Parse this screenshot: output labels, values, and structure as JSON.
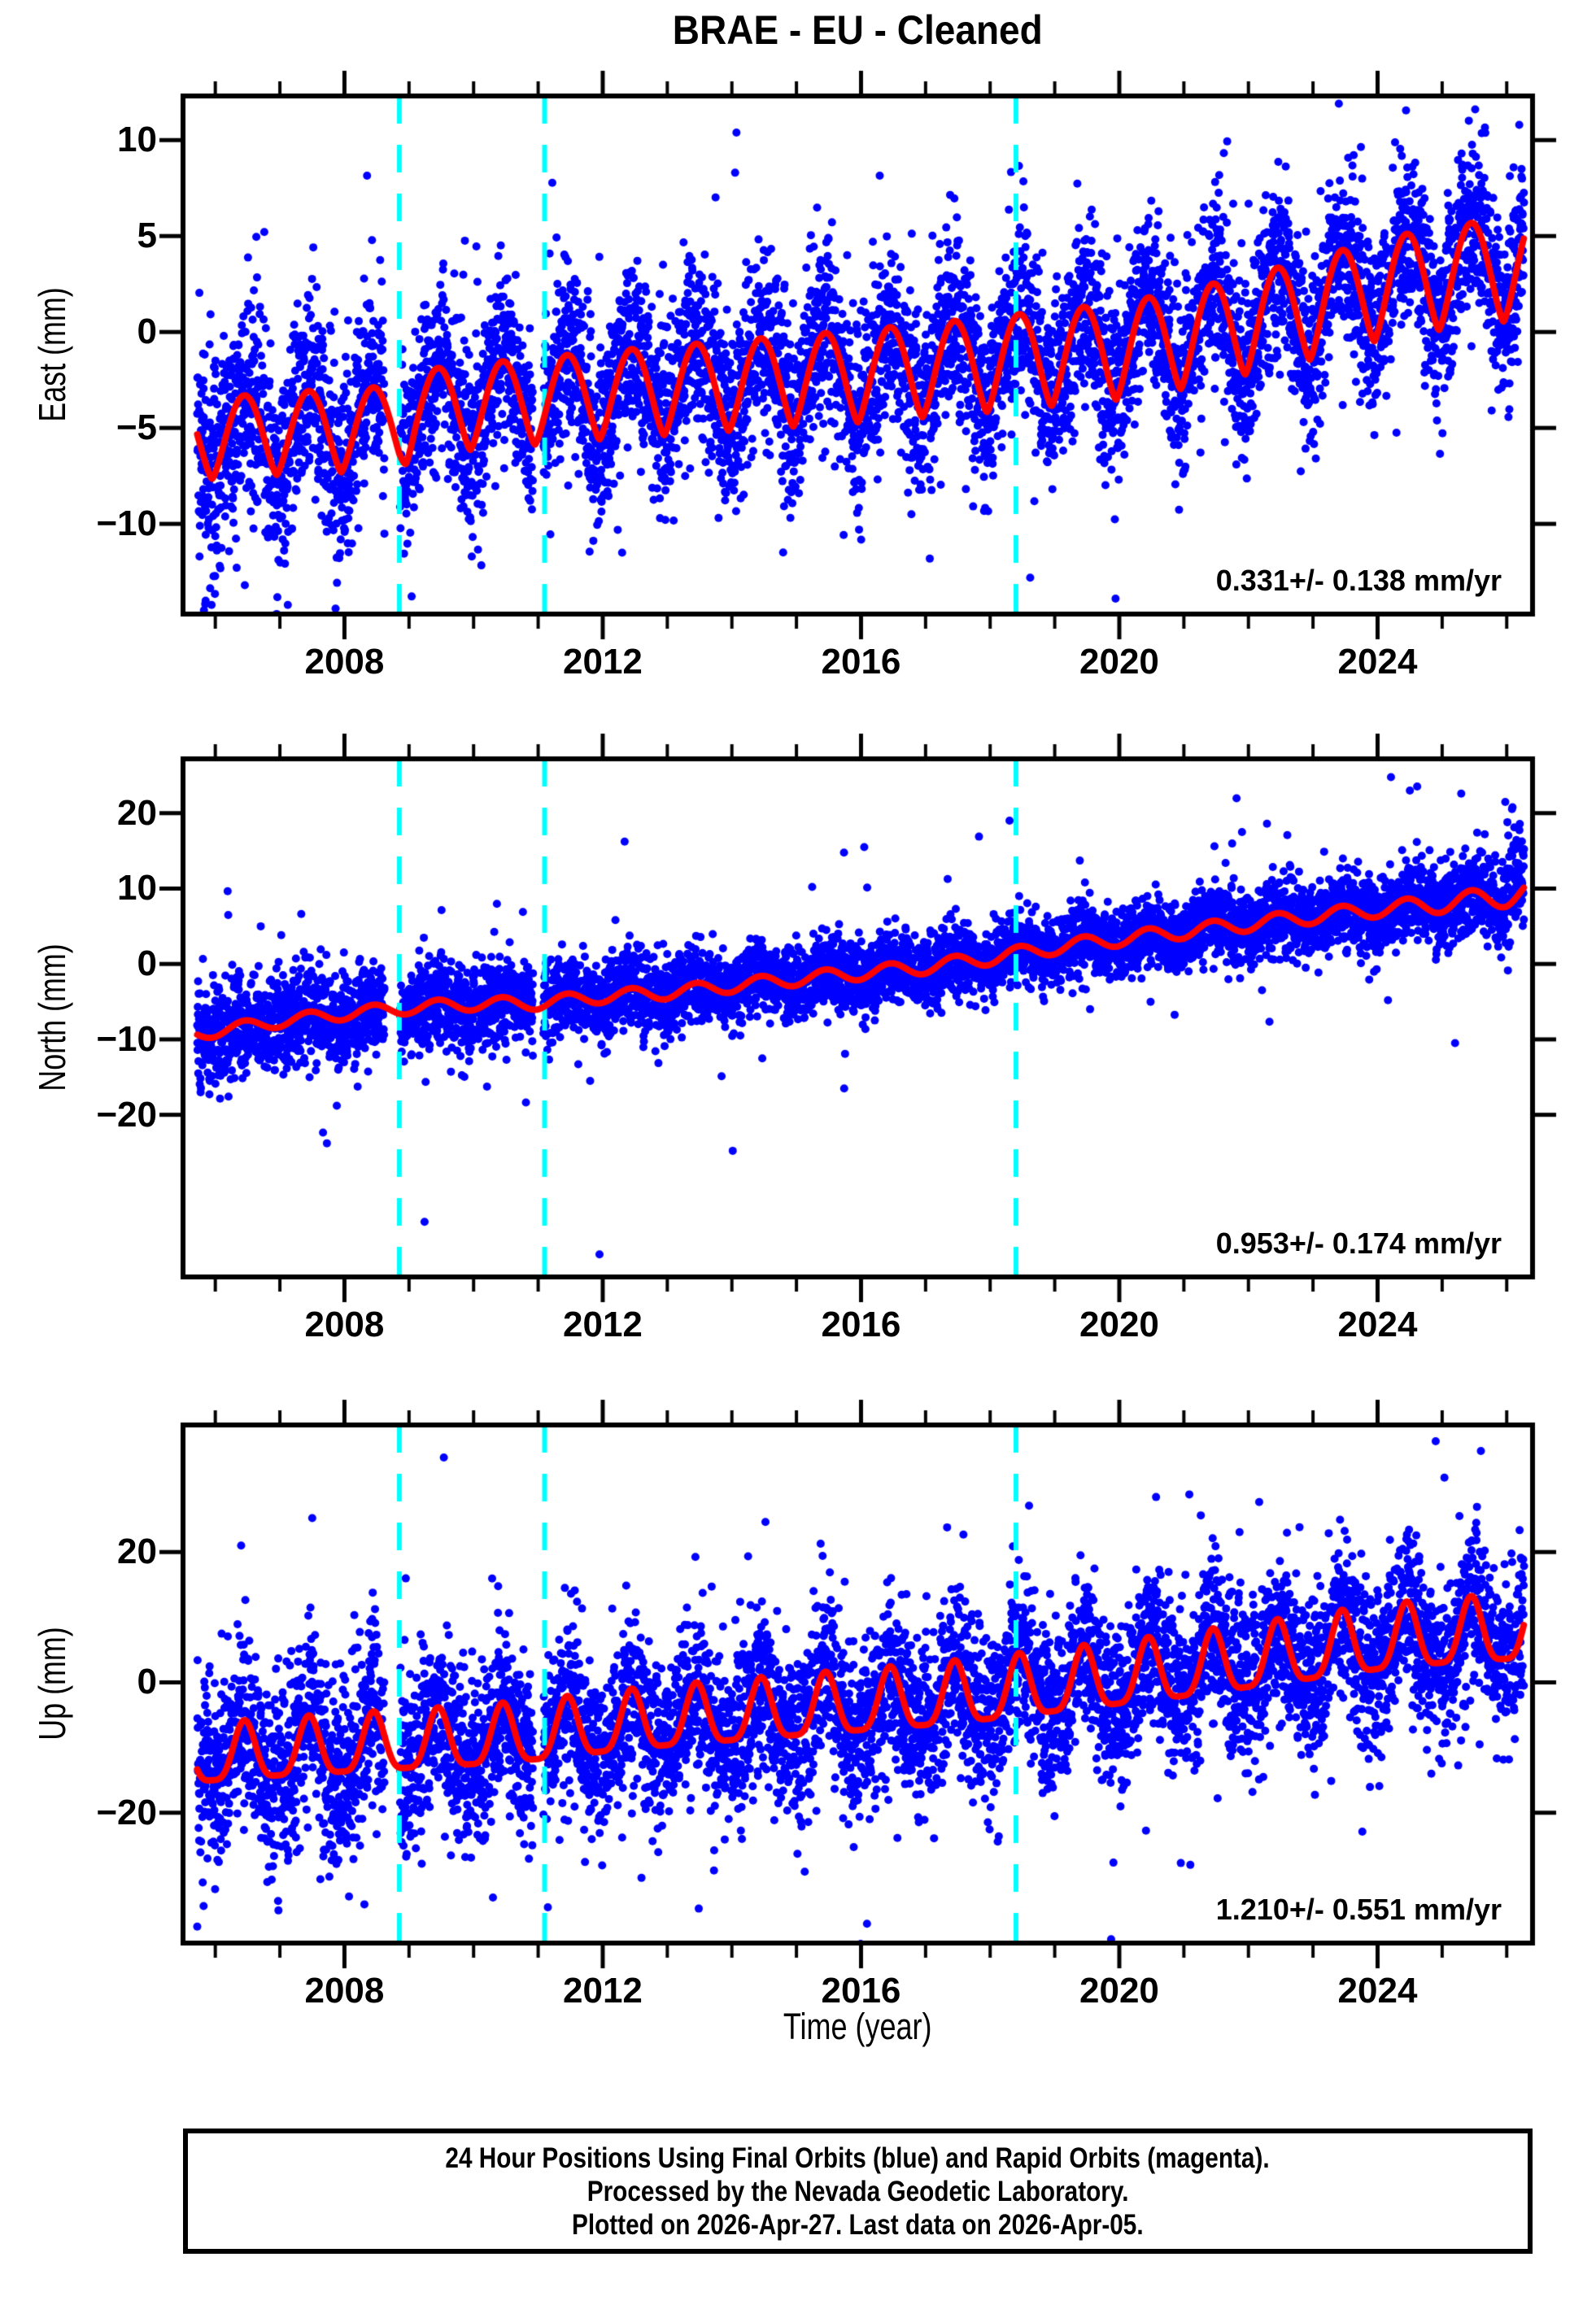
{
  "title": "BRAE  - EU - Cleaned",
  "xlabel": "Time (year)",
  "caption": {
    "line1": "24 Hour Positions Using Final Orbits (blue) and Rapid Orbits (magenta).",
    "line2": "Processed by the Nevada Geodetic Laboratory.",
    "line3": "Plotted on 2026-Apr-27. Last data on 2026-Apr-05."
  },
  "colors": {
    "points_final": "#0000ff",
    "points_rapid_magenta": "#ff00ff",
    "model_curve": "#ff0000",
    "event_lines": "#00ffff",
    "axes": "#000000",
    "background": "#ffffff"
  },
  "chart_data": {
    "type": "scatter",
    "x_range": [
      2005.5,
      2026.4
    ],
    "x_major_ticks": [
      2008,
      2012,
      2016,
      2020,
      2024
    ],
    "x_tick_labels": [
      "2008",
      "2012",
      "2016",
      "2020",
      "2024"
    ],
    "x_minor_step": 1,
    "data_start": 2005.72,
    "data_end": 2026.27,
    "points_per_year": 365,
    "seasonal_peak_phase": 0.45,
    "event_lines_years": [
      2008.85,
      2011.1,
      2018.4
    ],
    "gaps": [
      [
        2008.62,
        2008.86
      ],
      [
        2010.92,
        2011.08
      ]
    ],
    "panels": [
      {
        "id": "east",
        "ylabel": "East (mm)",
        "rate_label": "0.331+/- 0.138 mm/yr",
        "ylim": [
          -14.7,
          12.3
        ],
        "yticks": [
          10,
          5,
          0,
          -5,
          -10
        ],
        "ytick_labels": [
          "10",
          "5",
          "0",
          "−5",
          "−10"
        ],
        "trend_anchors": [
          [
            2005.7,
            -5.6
          ],
          [
            2007,
            -5.3
          ],
          [
            2008.85,
            -5.0
          ],
          [
            2009.1,
            -4.2
          ],
          [
            2010,
            -3.9
          ],
          [
            2012,
            -3.3
          ],
          [
            2014,
            -2.8
          ],
          [
            2016,
            -2.3
          ],
          [
            2018,
            -1.7
          ],
          [
            2020,
            -1.0
          ],
          [
            2021,
            -0.4
          ],
          [
            2022,
            0.4
          ],
          [
            2023,
            1.2
          ],
          [
            2024,
            2.2
          ],
          [
            2025,
            2.8
          ],
          [
            2026.3,
            3.4
          ]
        ],
        "seasonal_amp_anchors": [
          [
            2005.7,
            2.1
          ],
          [
            2026.3,
            2.7
          ]
        ],
        "seasonal_shape_exp": 0.7,
        "noise_sigma_anchors": [
          [
            2005.7,
            3.0
          ],
          [
            2007,
            2.7
          ],
          [
            2009,
            2.4
          ],
          [
            2026.3,
            2.3
          ]
        ],
        "outlier_prob": 0.02,
        "outlier_scale": 2.6,
        "extra_points": [
          [
            2018.62,
            -12.8
          ],
          [
            2014.05,
            8.3
          ],
          [
            2005.85,
            -14.0
          ],
          [
            2023.4,
            11.9
          ],
          [
            2012.3,
            -11.5
          ]
        ]
      },
      {
        "id": "north",
        "ylabel": "North (mm)",
        "rate_label": "0.953+/- 0.174 mm/yr",
        "ylim": [
          -41.5,
          27.2
        ],
        "yticks": [
          20,
          10,
          0,
          -10,
          -20
        ],
        "ytick_labels": [
          "20",
          "10",
          "0",
          "−10",
          "−20"
        ],
        "trend_anchors": [
          [
            2005.7,
            -9.3
          ],
          [
            2007,
            -7.6
          ],
          [
            2008,
            -6.6
          ],
          [
            2009,
            -5.8
          ],
          [
            2010,
            -5.3
          ],
          [
            2011,
            -5.2
          ],
          [
            2012,
            -4.3
          ],
          [
            2013,
            -3.8
          ],
          [
            2014,
            -2.9
          ],
          [
            2015,
            -2.0
          ],
          [
            2016,
            -1.2
          ],
          [
            2017,
            -0.4
          ],
          [
            2018,
            0.8
          ],
          [
            2019,
            2.2
          ],
          [
            2020,
            3.3
          ],
          [
            2021,
            4.3
          ],
          [
            2022,
            5.3
          ],
          [
            2023,
            6.3
          ],
          [
            2024,
            7.2
          ],
          [
            2025,
            8.0
          ],
          [
            2026,
            9.0
          ],
          [
            2026.3,
            9.6
          ]
        ],
        "seasonal_amp_anchors": [
          [
            2005.7,
            0.8
          ],
          [
            2024,
            1.0
          ],
          [
            2026.3,
            1.5
          ]
        ],
        "seasonal_shape_exp": 1.0,
        "noise_sigma_anchors": [
          [
            2005.7,
            3.6
          ],
          [
            2009,
            3.0
          ],
          [
            2012,
            2.5
          ],
          [
            2016,
            2.3
          ],
          [
            2020,
            2.3
          ],
          [
            2024,
            2.6
          ],
          [
            2026.3,
            2.9
          ]
        ],
        "outlier_prob": 0.02,
        "outlier_scale": 3.0,
        "end_skew": {
          "start": 2025.95,
          "amp": 5.0,
          "prob": 0.45
        },
        "extra_points": [
          [
            2011.95,
            -38.5
          ],
          [
            2016.05,
            15.5
          ],
          [
            2018.3,
            19.0
          ],
          [
            2021.9,
            17.5
          ],
          [
            2024.5,
            23.0
          ],
          [
            2025.2,
            -10.5
          ],
          [
            2006.2,
            6.5
          ]
        ]
      },
      {
        "id": "up",
        "ylabel": "Up (mm)",
        "rate_label": "1.210+/- 0.551 mm/yr",
        "ylim": [
          -40.0,
          39.5
        ],
        "yticks": [
          20,
          0,
          -20
        ],
        "ytick_labels": [
          "20",
          "0",
          "−20"
        ],
        "trend_anchors": [
          [
            2005.7,
            -10.8
          ],
          [
            2007,
            -9.8
          ],
          [
            2008,
            -9.2
          ],
          [
            2009,
            -8.6
          ],
          [
            2010,
            -8.0
          ],
          [
            2011,
            -7.2
          ],
          [
            2012,
            -6.0
          ],
          [
            2013,
            -5.0
          ],
          [
            2014,
            -4.2
          ],
          [
            2015,
            -3.4
          ],
          [
            2016,
            -2.6
          ],
          [
            2017,
            -1.8
          ],
          [
            2018,
            -0.8
          ],
          [
            2019,
            0.4
          ],
          [
            2020,
            1.6
          ],
          [
            2021,
            2.8
          ],
          [
            2022,
            4.2
          ],
          [
            2023,
            5.6
          ],
          [
            2024,
            7.0
          ],
          [
            2025,
            8.0
          ],
          [
            2026.3,
            8.8
          ]
        ],
        "seasonal_amp_anchors": [
          [
            2005.7,
            4.4
          ],
          [
            2026.3,
            5.0
          ]
        ],
        "seasonal_shape_exp": 1.9,
        "noise_sigma_anchors": [
          [
            2005.7,
            7.4
          ],
          [
            2008,
            7.0
          ],
          [
            2012,
            6.5
          ],
          [
            2020,
            6.0
          ],
          [
            2026.3,
            6.4
          ]
        ],
        "outlier_prob": 0.025,
        "outlier_scale": 2.4,
        "extra_points": [
          [
            2010.3,
            -33.0
          ],
          [
            2011.15,
            -34.5
          ],
          [
            2021.1,
            -28.0
          ],
          [
            2025.6,
            35.5
          ],
          [
            2024.9,
            37.0
          ],
          [
            2006.4,
            21.0
          ],
          [
            2012.6,
            -30.0
          ]
        ]
      }
    ]
  }
}
